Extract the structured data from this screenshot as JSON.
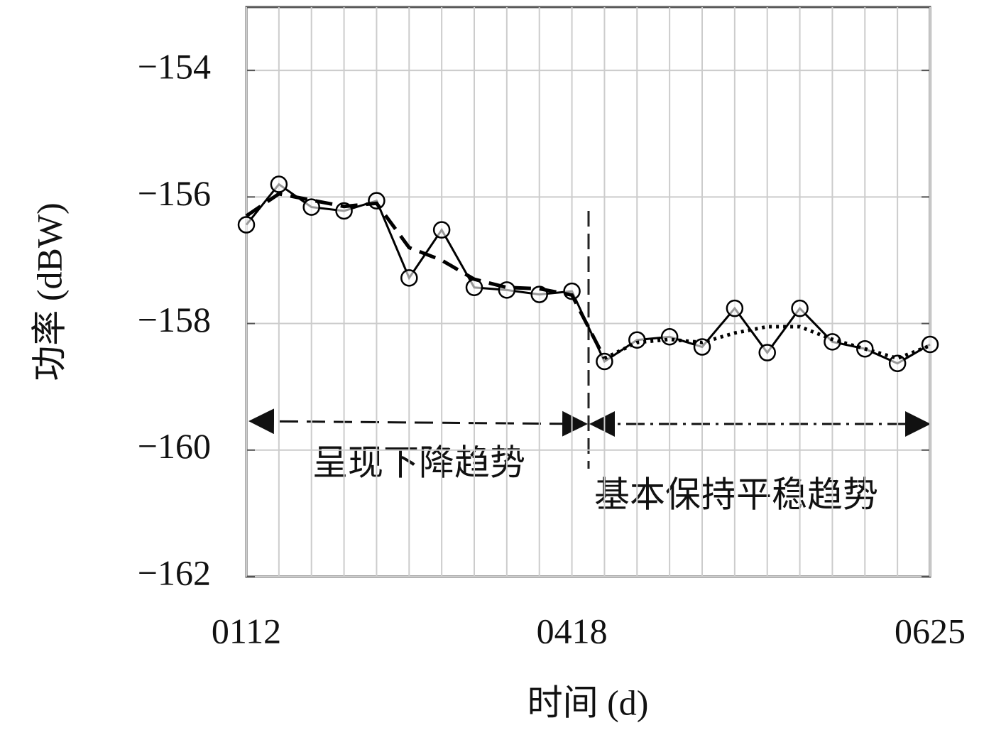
{
  "chart_data": {
    "type": "line",
    "ylabel": "功率 (dBW)",
    "xlabel": "时间 (d)",
    "categories": [
      "0112",
      null,
      null,
      null,
      null,
      null,
      null,
      null,
      null,
      null,
      "0418",
      null,
      null,
      null,
      null,
      null,
      null,
      null,
      null,
      null,
      null,
      "0625"
    ],
    "series": [
      {
        "color": "#000000",
        "style": "solid",
        "marker": "circle",
        "values": [
          -156.44,
          -155.8,
          -156.16,
          -156.22,
          -156.06,
          -157.28,
          -156.52,
          -157.43,
          -157.47,
          -157.54,
          -157.49,
          -158.6,
          -158.26,
          -158.21,
          -158.37,
          -157.76,
          -158.46,
          -157.76,
          -158.29,
          -158.4,
          -158.63,
          -158.33
        ]
      },
      {
        "color": "#000000",
        "style": "dashed",
        "values": [
          -156.3,
          -155.95,
          -156.05,
          -156.15,
          -156.1,
          -156.8,
          -157.0,
          -157.3,
          -157.43,
          -157.45,
          -157.55,
          -158.55,
          null,
          null,
          null,
          null,
          null,
          null,
          null,
          null,
          null,
          null
        ]
      },
      {
        "color": "#000000",
        "style": "dotted",
        "values": [
          null,
          null,
          null,
          null,
          null,
          null,
          null,
          null,
          null,
          null,
          null,
          -158.55,
          -158.3,
          -158.25,
          -158.3,
          -158.15,
          -158.05,
          -158.05,
          -158.25,
          -158.4,
          -158.55,
          -158.35
        ]
      }
    ],
    "annotations": [
      "呈现下降趋势",
      "基本保持平稳趋势"
    ],
    "ylim": [
      -162,
      -153
    ],
    "yticks": [
      {
        "value": -154,
        "label": "−154"
      },
      {
        "value": -156,
        "label": "−156"
      },
      {
        "value": -158,
        "label": "−158"
      },
      {
        "value": -160,
        "label": "−160"
      },
      {
        "value": -162,
        "label": "−162"
      }
    ],
    "grid": true
  }
}
